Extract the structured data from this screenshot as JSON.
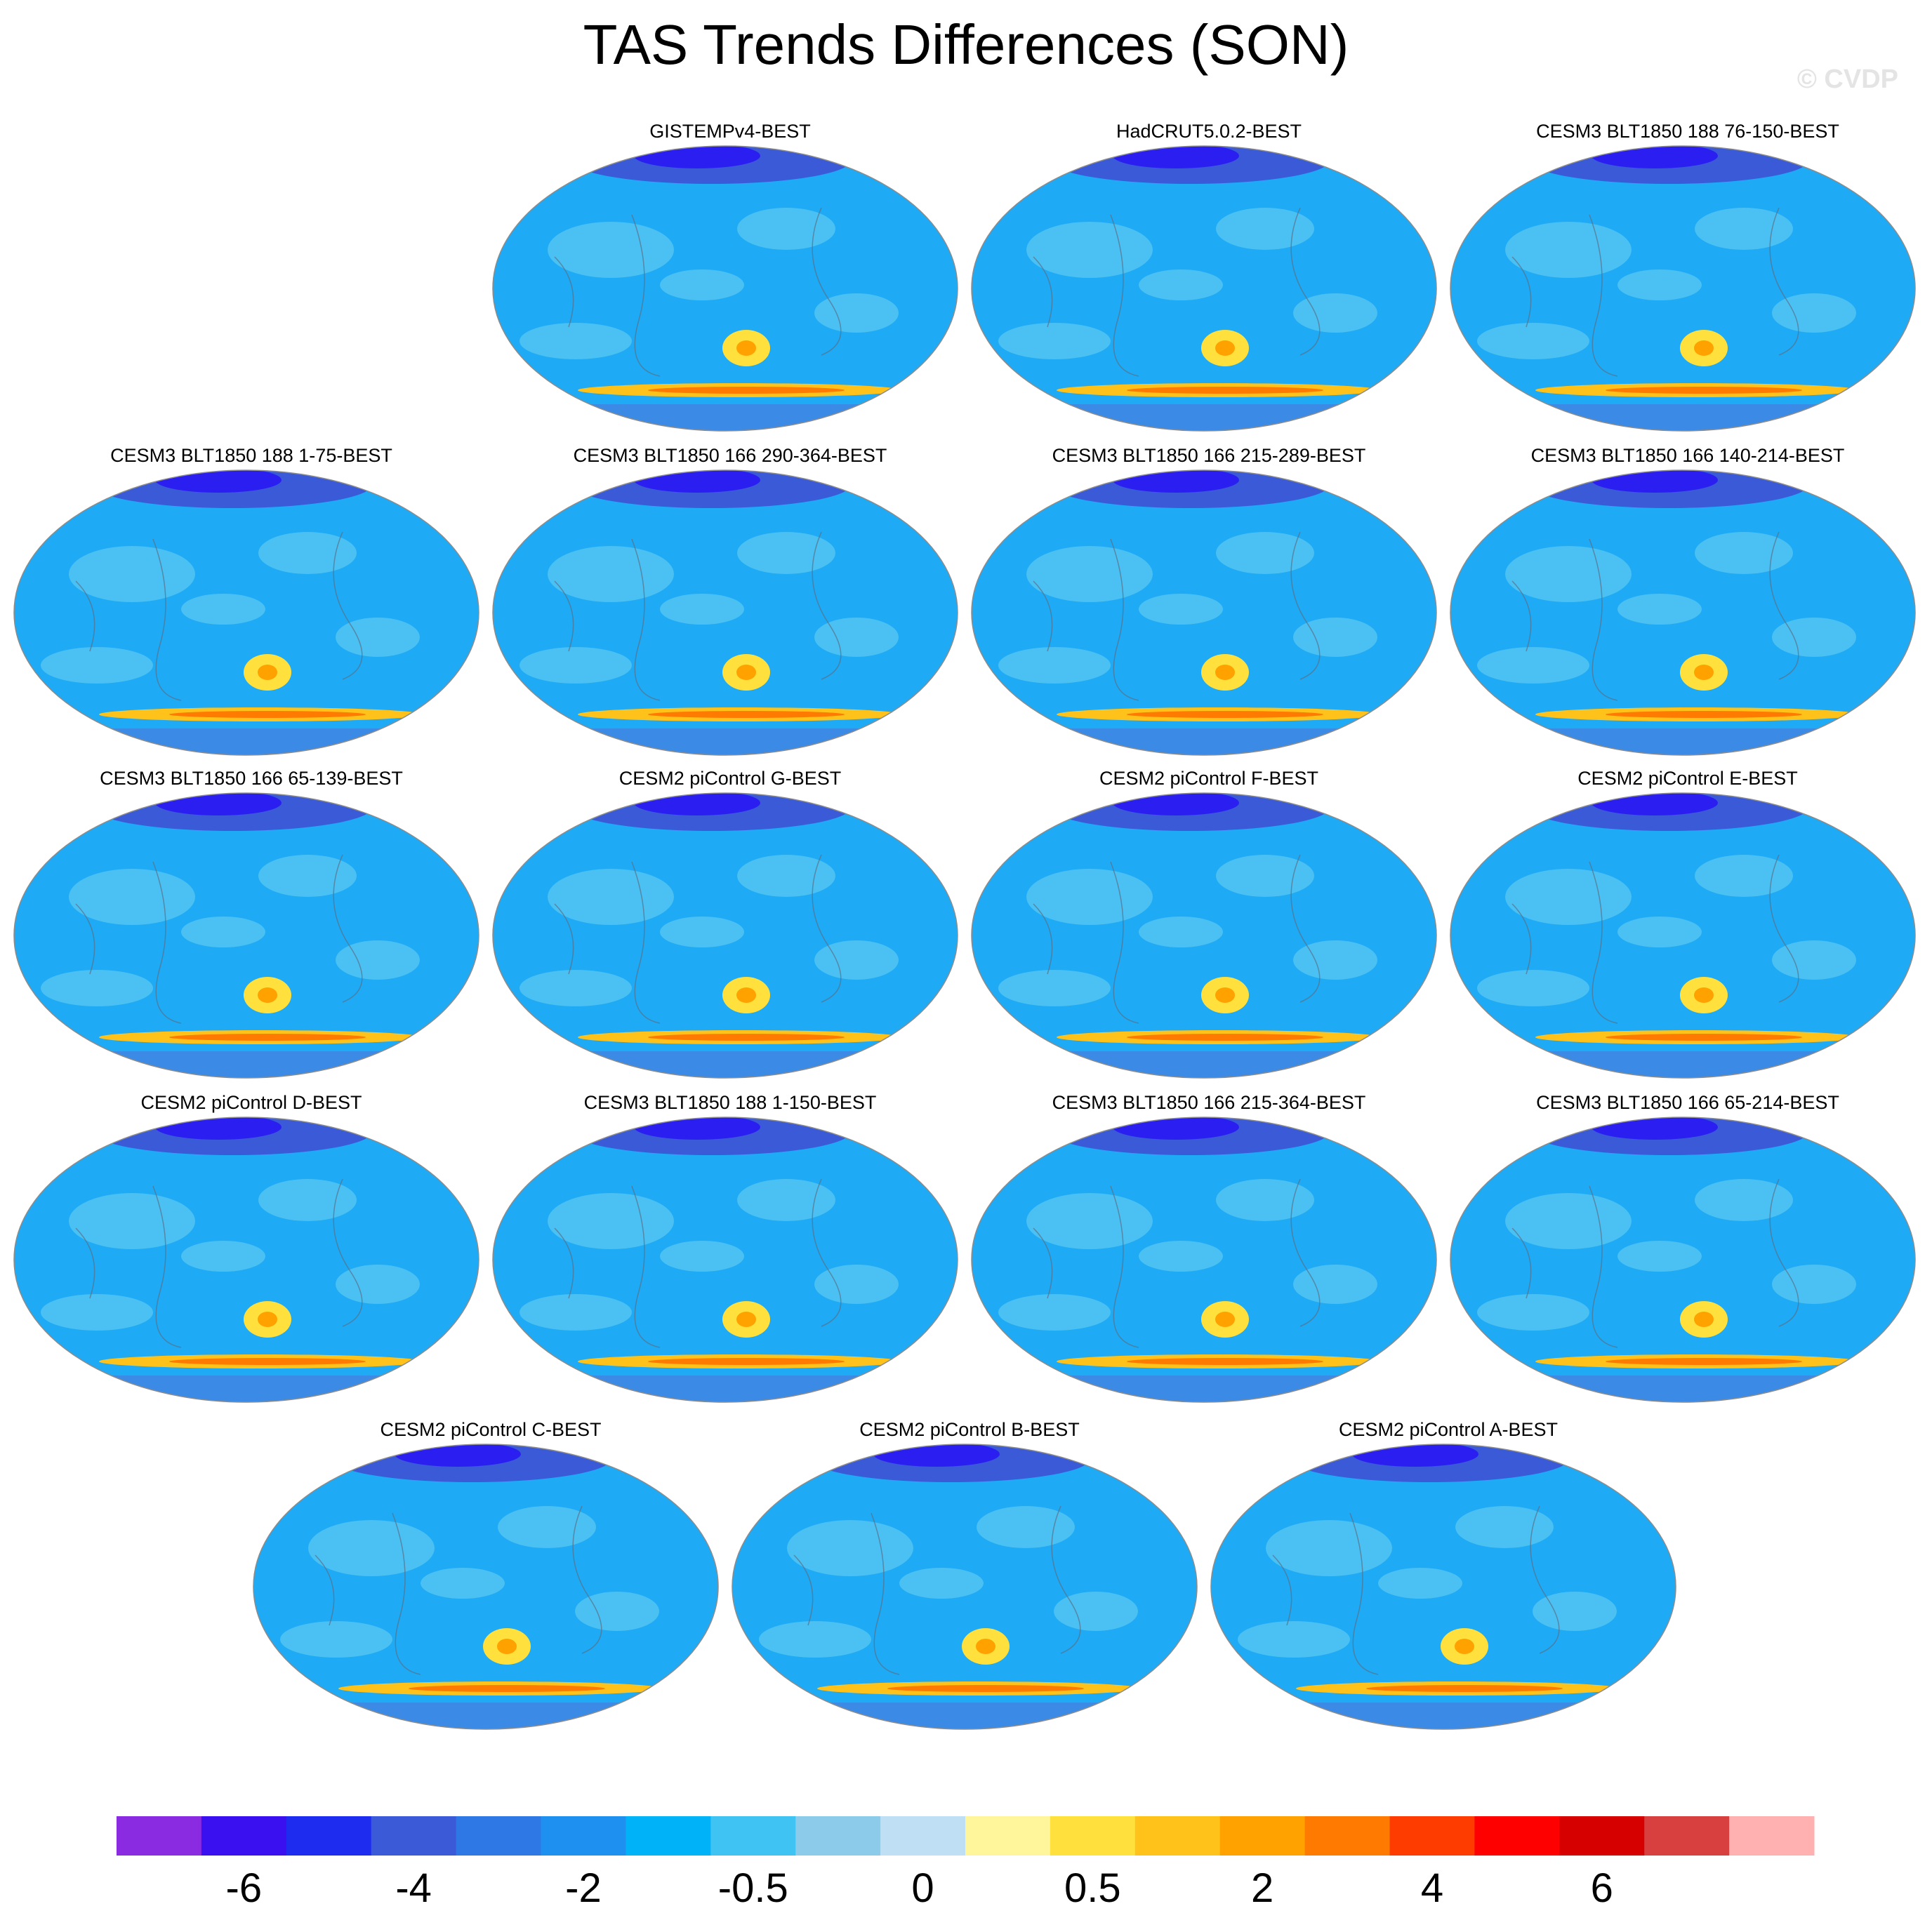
{
  "title": "TAS Trends Differences (SON)",
  "watermark": "© CVDP",
  "chart_data": {
    "type": "heatmap",
    "title": "TAS Trends Differences (SON)",
    "projection": "global map (Robinson-like), 1 panel per dataset",
    "panels": [
      {
        "label": "GISTEMPv4-BEST",
        "row": 0,
        "col": 1
      },
      {
        "label": "HadCRUT5.0.2-BEST",
        "row": 0,
        "col": 2
      },
      {
        "label": "CESM3 BLT1850 188 76-150-BEST",
        "row": 0,
        "col": 3
      },
      {
        "label": "CESM3 BLT1850 188 1-75-BEST",
        "row": 1,
        "col": 0
      },
      {
        "label": "CESM3 BLT1850 166 290-364-BEST",
        "row": 1,
        "col": 1
      },
      {
        "label": "CESM3 BLT1850 166 215-289-BEST",
        "row": 1,
        "col": 2
      },
      {
        "label": "CESM3 BLT1850 166 140-214-BEST",
        "row": 1,
        "col": 3
      },
      {
        "label": "CESM3 BLT1850 166 65-139-BEST",
        "row": 2,
        "col": 0
      },
      {
        "label": "CESM2 piControl G-BEST",
        "row": 2,
        "col": 1
      },
      {
        "label": "CESM2 piControl F-BEST",
        "row": 2,
        "col": 2
      },
      {
        "label": "CESM2 piControl E-BEST",
        "row": 2,
        "col": 3
      },
      {
        "label": "CESM2 piControl D-BEST",
        "row": 3,
        "col": 0
      },
      {
        "label": "CESM3 BLT1850 188 1-150-BEST",
        "row": 3,
        "col": 1
      },
      {
        "label": "CESM3 BLT1850 166 215-364-BEST",
        "row": 3,
        "col": 2
      },
      {
        "label": "CESM3 BLT1850 166 65-214-BEST",
        "row": 3,
        "col": 3
      },
      {
        "label": "CESM2 piControl C-BEST",
        "row": 4,
        "col": 0.5
      },
      {
        "label": "CESM2 piControl B-BEST",
        "row": 4,
        "col": 1.5
      },
      {
        "label": "CESM2 piControl A-BEST",
        "row": 4,
        "col": 2.5
      }
    ],
    "colorbar": {
      "colors": [
        "#8a2be2",
        "#3a10f0",
        "#1e2cf0",
        "#3a5ad8",
        "#2e78e6",
        "#1e90f0",
        "#00b2f8",
        "#3ec3f2",
        "#8ccbea",
        "#bfe0f4",
        "#fff59a",
        "#ffe03c",
        "#ffc21a",
        "#ffa200",
        "#ff7a00",
        "#ff3c00",
        "#ff0000",
        "#d60000",
        "#d84040",
        "#ffb0b0"
      ],
      "tick_labels": [
        "-6",
        "-4",
        "-2",
        "-0.5",
        "0",
        "0.5",
        "2",
        "4",
        "6"
      ],
      "tick_after_box": [
        2,
        4,
        6,
        8,
        10,
        12,
        14,
        16,
        18
      ]
    }
  }
}
